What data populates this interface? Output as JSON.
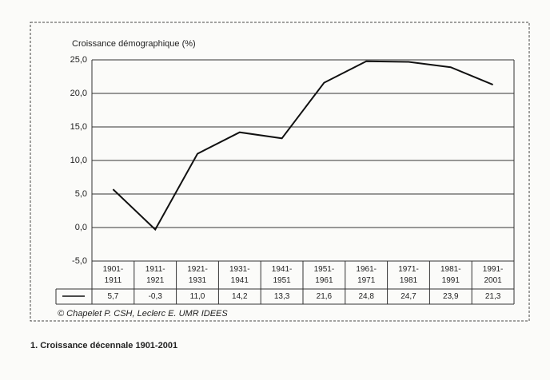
{
  "chart_data": {
    "type": "line",
    "title": "Croissance démographique (%)",
    "categories": [
      "1901-\n1911",
      "1911-\n1921",
      "1921-\n1931",
      "1931-\n1941",
      "1941-\n1951",
      "1951-\n1961",
      "1961-\n1971",
      "1971-\n1981",
      "1981-\n1991",
      "1991-\n2001"
    ],
    "values": [
      5.7,
      -0.3,
      11.0,
      14.2,
      13.3,
      21.6,
      24.8,
      24.7,
      23.9,
      21.3
    ],
    "value_labels": [
      "5,7",
      "-0,3",
      "11,0",
      "14,2",
      "13,3",
      "21,6",
      "24,8",
      "24,7",
      "23,9",
      "21,3"
    ],
    "color": "#111111",
    "ylim": [
      -5,
      25
    ],
    "yticks": [
      {
        "value": -5,
        "label": "-5,0"
      },
      {
        "value": 0,
        "label": "0,0"
      },
      {
        "value": 5,
        "label": "5,0"
      },
      {
        "value": 10,
        "label": "10,0"
      },
      {
        "value": 15,
        "label": "15,0"
      },
      {
        "value": 20,
        "label": "20,0"
      },
      {
        "value": 25,
        "label": "25,0"
      }
    ],
    "grid": true,
    "source": "© Chapelet P. CSH, Leclerc E. UMR IDEES",
    "caption": "1. Croissance décennale 1901-2001"
  }
}
